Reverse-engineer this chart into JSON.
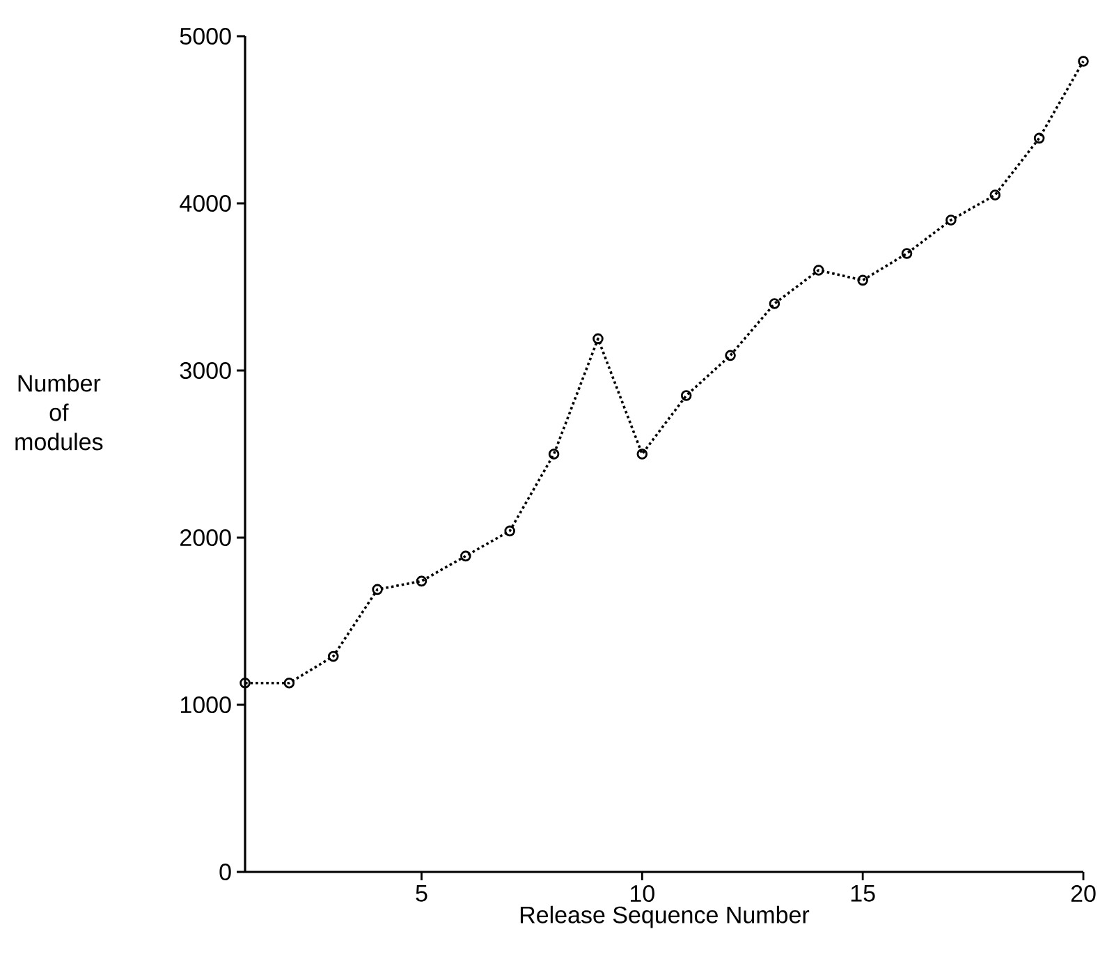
{
  "chart_data": {
    "type": "line",
    "xlabel": "Release Sequence Number",
    "ylabel": "Number of modules",
    "x": [
      1,
      2,
      3,
      4,
      5,
      6,
      7,
      8,
      9,
      10,
      11,
      12,
      13,
      14,
      15,
      16,
      17,
      18,
      19,
      20
    ],
    "series": [
      {
        "color": "#000000",
        "values": [
          1130,
          1130,
          1290,
          1690,
          1740,
          1890,
          2040,
          2500,
          3190,
          2500,
          2850,
          3090,
          3400,
          3600,
          3540,
          3700,
          3900,
          4050,
          4390,
          4850
        ]
      }
    ],
    "xlim": [
      1,
      20
    ],
    "ylim": [
      0,
      5000
    ],
    "xticks": [
      5,
      10,
      15,
      20
    ],
    "yticks": [
      0,
      1000,
      2000,
      3000,
      4000,
      5000
    ],
    "marker": "circle",
    "line_style": "dotted"
  }
}
